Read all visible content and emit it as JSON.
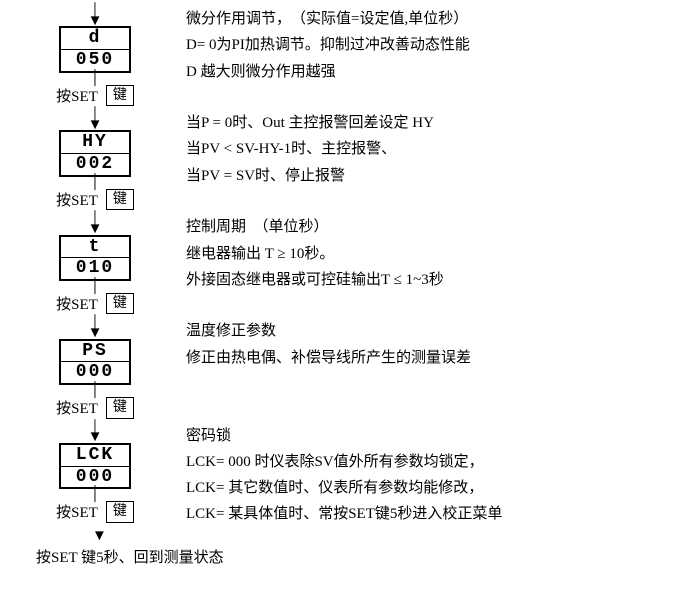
{
  "colors": {
    "text": "#000000",
    "bg": "#ffffff",
    "border": "#000000"
  },
  "font": {
    "body_family": "SimSun / Songti",
    "seg_family": "Courier New",
    "body_size_pt": 11,
    "seg_size_pt": 13
  },
  "buttons": {
    "set_prefix": "按SET",
    "key_label": "键"
  },
  "steps": [
    {
      "seg_top": "d",
      "seg_bottom": "050",
      "desc_lines": [
        "微分作用调节，　（实际值=设定值,单位秒）",
        "D= 0为PI加热调节。抑制过冲改善动态性能",
        "D 越大则微分作用越强"
      ]
    },
    {
      "seg_top": "HY",
      "seg_bottom": "002",
      "desc_lines": [
        "当P = 0时、Out 主控报警回差设定 HY",
        "当PV < SV-HY-1时、主控报警、",
        "当PV = SV时、停止报警"
      ]
    },
    {
      "seg_top": "t",
      "seg_bottom": "010",
      "desc_lines": [
        "控制周期　（单位秒）",
        "继电器输出  T ≥    10秒。",
        "外接固态继电器或可控硅输出T ≤ 1~3秒"
      ]
    },
    {
      "seg_top": "PS",
      "seg_bottom": "000",
      "desc_lines": [
        "温度修正参数",
        "修正由热电偶、补偿导线所产生的测量误差"
      ]
    },
    {
      "seg_top": "LCK",
      "seg_bottom": "000",
      "desc_lines": [
        "密码锁",
        "LCK= 000 时仪表除SV值外所有参数均锁定，",
        "LCK= 其它数值时、仪表所有参数均能修改，",
        "LCK= 某具体值时、常按SET键5秒进入校正菜单"
      ]
    }
  ],
  "final": "按SET  键5秒、回到测量状态"
}
